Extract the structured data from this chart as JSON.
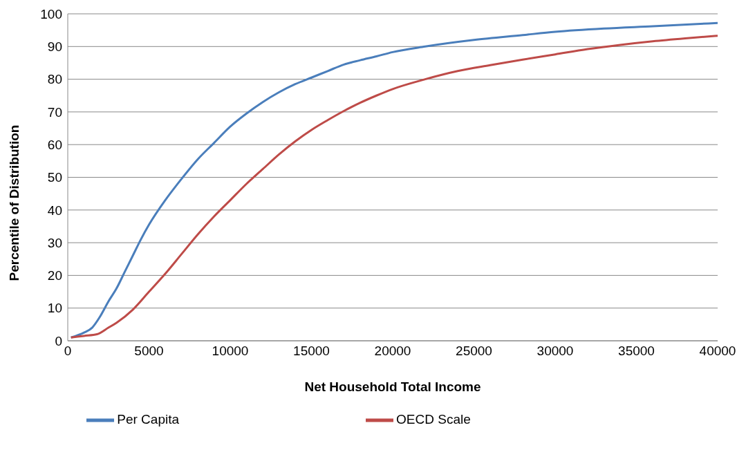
{
  "chart_data": {
    "type": "line",
    "xlabel": "Net Household Total Income",
    "ylabel": "Percentile of Distribution",
    "xlim": [
      0,
      40000
    ],
    "xticks": [
      0,
      5000,
      10000,
      15000,
      20000,
      25000,
      30000,
      35000,
      40000
    ],
    "ylim": [
      0,
      100
    ],
    "yticks": [
      0,
      10,
      20,
      30,
      40,
      50,
      60,
      70,
      80,
      90,
      100
    ],
    "grid": "y",
    "legend": "bottom",
    "marker": "none",
    "line_style": "solid",
    "series": [
      {
        "name": "Per Capita",
        "color": "#4a7ebb",
        "x": [
          200,
          1000,
          1500,
          2000,
          2500,
          3000,
          3500,
          4000,
          4500,
          5000,
          6000,
          7000,
          8000,
          9000,
          10000,
          11000,
          12000,
          13000,
          14000,
          15000,
          16000,
          17000,
          18000,
          19000,
          20000,
          22000,
          25000,
          28000,
          30000,
          33000,
          36000,
          40000
        ],
        "values": [
          1,
          2.5,
          4,
          7.5,
          12,
          16,
          21,
          26,
          31,
          35.5,
          43,
          49.5,
          55.5,
          60.5,
          65.5,
          69.5,
          73,
          76,
          78.5,
          80.5,
          82.5,
          84.5,
          85.8,
          87,
          88.3,
          90,
          92,
          93.5,
          94.5,
          95.5,
          96.2,
          97.2
        ]
      },
      {
        "name": "OECD Scale",
        "color": "#be4b48",
        "x": [
          200,
          1000,
          1800,
          2500,
          3000,
          4000,
          5000,
          6000,
          7000,
          8000,
          9000,
          10000,
          11000,
          12000,
          13000,
          14000,
          15000,
          16000,
          17000,
          18000,
          19000,
          20000,
          22000,
          24000,
          26000,
          28000,
          30000,
          32000,
          34000,
          36000,
          38000,
          40000
        ],
        "values": [
          1,
          1.5,
          2,
          4,
          5.5,
          9.5,
          15,
          20.5,
          26.5,
          32.5,
          38,
          43,
          48,
          52.5,
          57,
          61,
          64.5,
          67.5,
          70.3,
          72.8,
          75,
          77,
          80,
          82.5,
          84.3,
          86,
          87.6,
          89.2,
          90.5,
          91.6,
          92.5,
          93.3
        ]
      }
    ]
  }
}
